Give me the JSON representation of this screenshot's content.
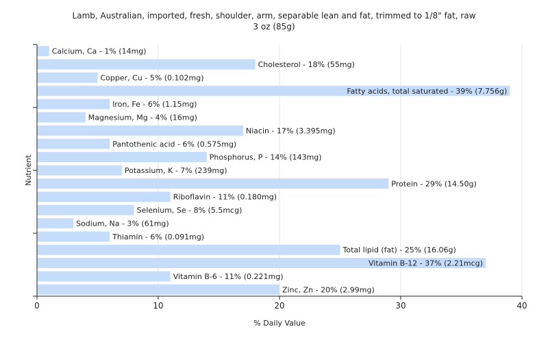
{
  "chart_data": {
    "type": "bar",
    "orientation": "horizontal",
    "title": "Lamb, Australian, imported, fresh, shoulder, arm, separable lean and fat, trimmed to 1/8\" fat, raw",
    "subtitle": "3 oz (85g)",
    "xlabel": "% Daily Value",
    "ylabel": "Nutrient",
    "xlim": [
      0,
      40
    ],
    "xticks": [
      0,
      10,
      20,
      30,
      40
    ],
    "grid": true,
    "bar_color": "#c6dcfb",
    "categories": [
      "Calcium, Ca",
      "Cholesterol",
      "Copper, Cu",
      "Fatty acids, total saturated",
      "Iron, Fe",
      "Magnesium, Mg",
      "Niacin",
      "Pantothenic acid",
      "Phosphorus, P",
      "Potassium, K",
      "Protein",
      "Riboflavin",
      "Selenium, Se",
      "Sodium, Na",
      "Thiamin",
      "Total lipid (fat)",
      "Vitamin B-12",
      "Vitamin B-6",
      "Zinc, Zn"
    ],
    "values": [
      1,
      18,
      5,
      39,
      6,
      4,
      17,
      6,
      14,
      7,
      29,
      11,
      8,
      3,
      6,
      25,
      37,
      11,
      20
    ],
    "labels": [
      "Calcium, Ca - 1% (14mg)",
      "Cholesterol - 18% (55mg)",
      "Copper, Cu - 5% (0.102mg)",
      "Fatty acids, total saturated - 39% (7.756g)",
      "Iron, Fe - 6% (1.15mg)",
      "Magnesium, Mg - 4% (16mg)",
      "Niacin - 17% (3.395mg)",
      "Pantothenic acid - 6% (0.575mg)",
      "Phosphorus, P - 14% (143mg)",
      "Potassium, K - 7% (239mg)",
      "Protein - 29% (14.50g)",
      "Riboflavin - 11% (0.180mg)",
      "Selenium, Se - 8% (5.5mcg)",
      "Sodium, Na - 3% (61mg)",
      "Thiamin - 6% (0.091mg)",
      "Total lipid (fat) - 25% (16.06g)",
      "Vitamin B-12 - 37% (2.21mcg)",
      "Vitamin B-6 - 11% (0.221mg)",
      "Zinc, Zn - 20% (2.99mg)"
    ]
  }
}
